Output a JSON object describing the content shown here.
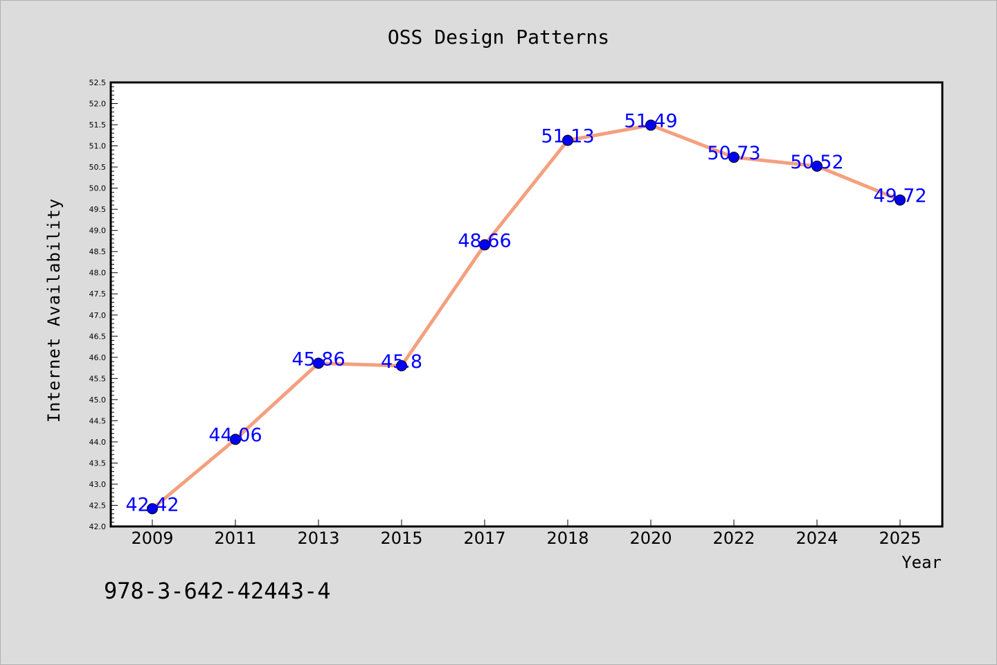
{
  "chart_data": {
    "type": "line",
    "title": "OSS Design Patterns",
    "xlabel": "Year",
    "ylabel": "Internet Availability",
    "categories": [
      "2009",
      "2011",
      "2013",
      "2015",
      "2017",
      "2018",
      "2020",
      "2022",
      "2024",
      "2025"
    ],
    "series": [
      {
        "values": [
          42.42,
          44.06,
          45.86,
          45.8,
          48.66,
          51.13,
          51.49,
          50.73,
          50.52,
          49.72
        ],
        "data_labels": [
          "42.42",
          "44.06",
          "45.86",
          "45.8",
          "48.66",
          "51.13",
          "51.49",
          "50.73",
          "50.52",
          "49.72"
        ],
        "line_color": "#f4a07e",
        "marker_color": "#0000ee"
      }
    ],
    "ylim": [
      42.0,
      52.5
    ],
    "yticks": [
      "42.0",
      "42.5",
      "43.0",
      "43.5",
      "44.0",
      "44.5",
      "45.0",
      "45.5",
      "46.0",
      "46.5",
      "47.0",
      "47.5",
      "48.0",
      "48.5",
      "49.0",
      "49.5",
      "50.0",
      "50.5",
      "51.0",
      "51.5",
      "52.0",
      "52.5"
    ],
    "grid": false,
    "label_color": "#0000ff"
  },
  "footer": {
    "isbn": "978-3-642-42443-4"
  }
}
